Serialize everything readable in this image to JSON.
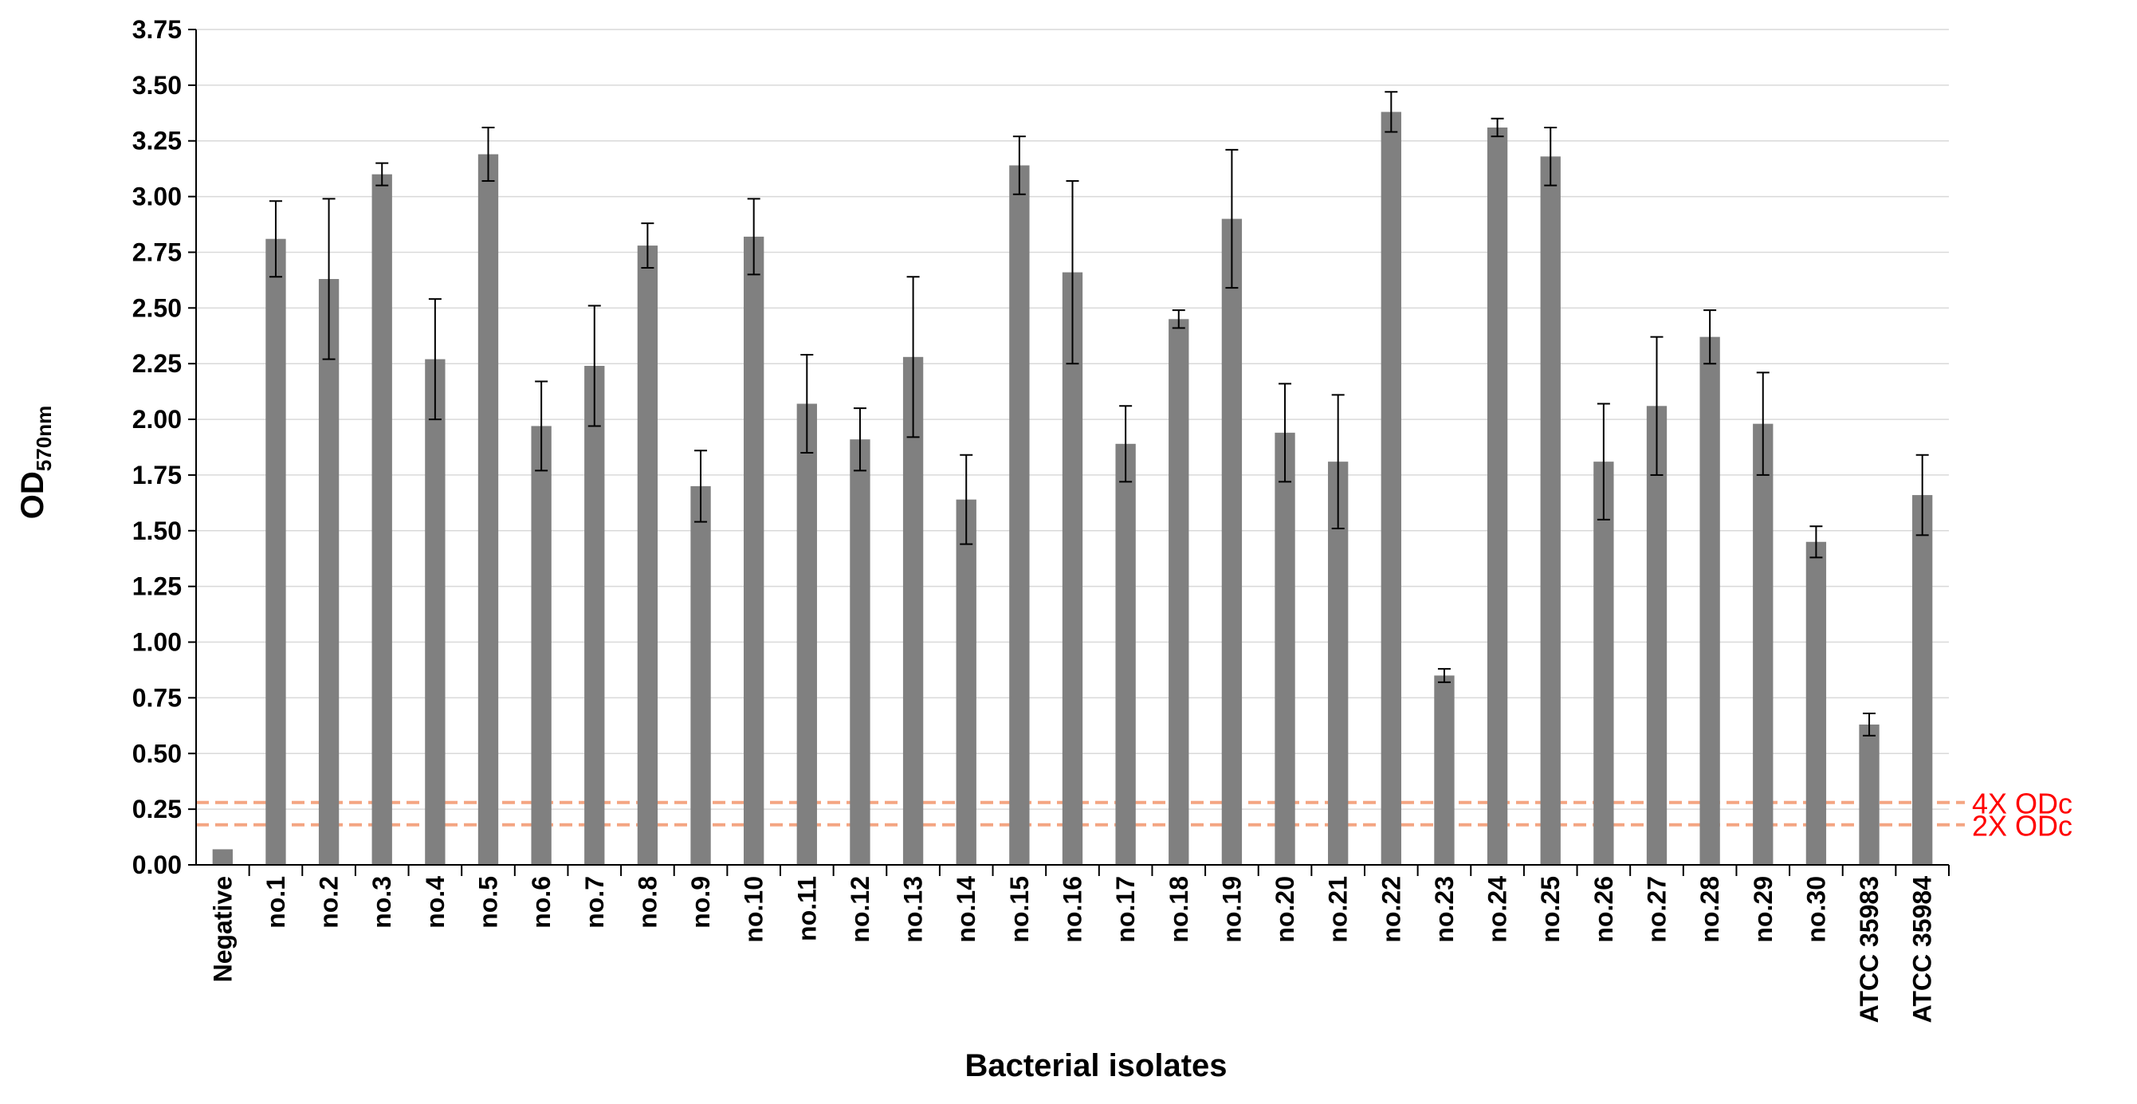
{
  "chart_data": {
    "type": "bar",
    "title": "",
    "xlabel": "Bacterial isolates",
    "ylabel": {
      "main": "OD",
      "subscript": "570nm"
    },
    "ylim": [
      0,
      3.75
    ],
    "yticks": [
      "0.00",
      "0.25",
      "0.50",
      "0.75",
      "1.00",
      "1.25",
      "1.50",
      "1.75",
      "2.00",
      "2.25",
      "2.50",
      "2.75",
      "3.00",
      "3.25",
      "3.50",
      "3.75"
    ],
    "grid": true,
    "legend": "none",
    "categories": [
      "Negative",
      "no.1",
      "no.2",
      "no.3",
      "no.4",
      "no.5",
      "no.6",
      "no.7",
      "no.8",
      "no.9",
      "no.10",
      "no.11",
      "no.12",
      "no.13",
      "no.14",
      "no.15",
      "no.16",
      "no.17",
      "no.18",
      "no.19",
      "no.20",
      "no.21",
      "no.22",
      "no.23",
      "no.24",
      "no.25",
      "no.26",
      "no.27",
      "no.28",
      "no.29",
      "no.30",
      "ATCC 35983",
      "ATCC 35984"
    ],
    "values": [
      0.07,
      2.81,
      2.63,
      3.1,
      2.27,
      3.19,
      1.97,
      2.24,
      2.78,
      1.7,
      2.82,
      2.07,
      1.91,
      2.28,
      1.64,
      3.14,
      2.66,
      1.89,
      2.45,
      2.9,
      1.94,
      1.81,
      3.38,
      0.85,
      3.31,
      3.18,
      1.81,
      2.06,
      2.37,
      1.98,
      1.45,
      0.63,
      1.66
    ],
    "errors": [
      0,
      0.17,
      0.36,
      0.05,
      0.27,
      0.12,
      0.2,
      0.27,
      0.1,
      0.16,
      0.17,
      0.22,
      0.14,
      0.36,
      0.2,
      0.13,
      0.41,
      0.17,
      0.04,
      0.31,
      0.22,
      0.3,
      0.09,
      0.03,
      0.04,
      0.13,
      0.26,
      0.31,
      0.12,
      0.23,
      0.07,
      0.05,
      0.18
    ],
    "bar_color": "#808080",
    "reference_lines": [
      {
        "label": "4X ODc",
        "value": 0.28,
        "color": "#f4a582",
        "label_color": "#ff0000"
      },
      {
        "label": "2X ODc",
        "value": 0.18,
        "color": "#f4a582",
        "label_color": "#ff0000"
      }
    ]
  }
}
